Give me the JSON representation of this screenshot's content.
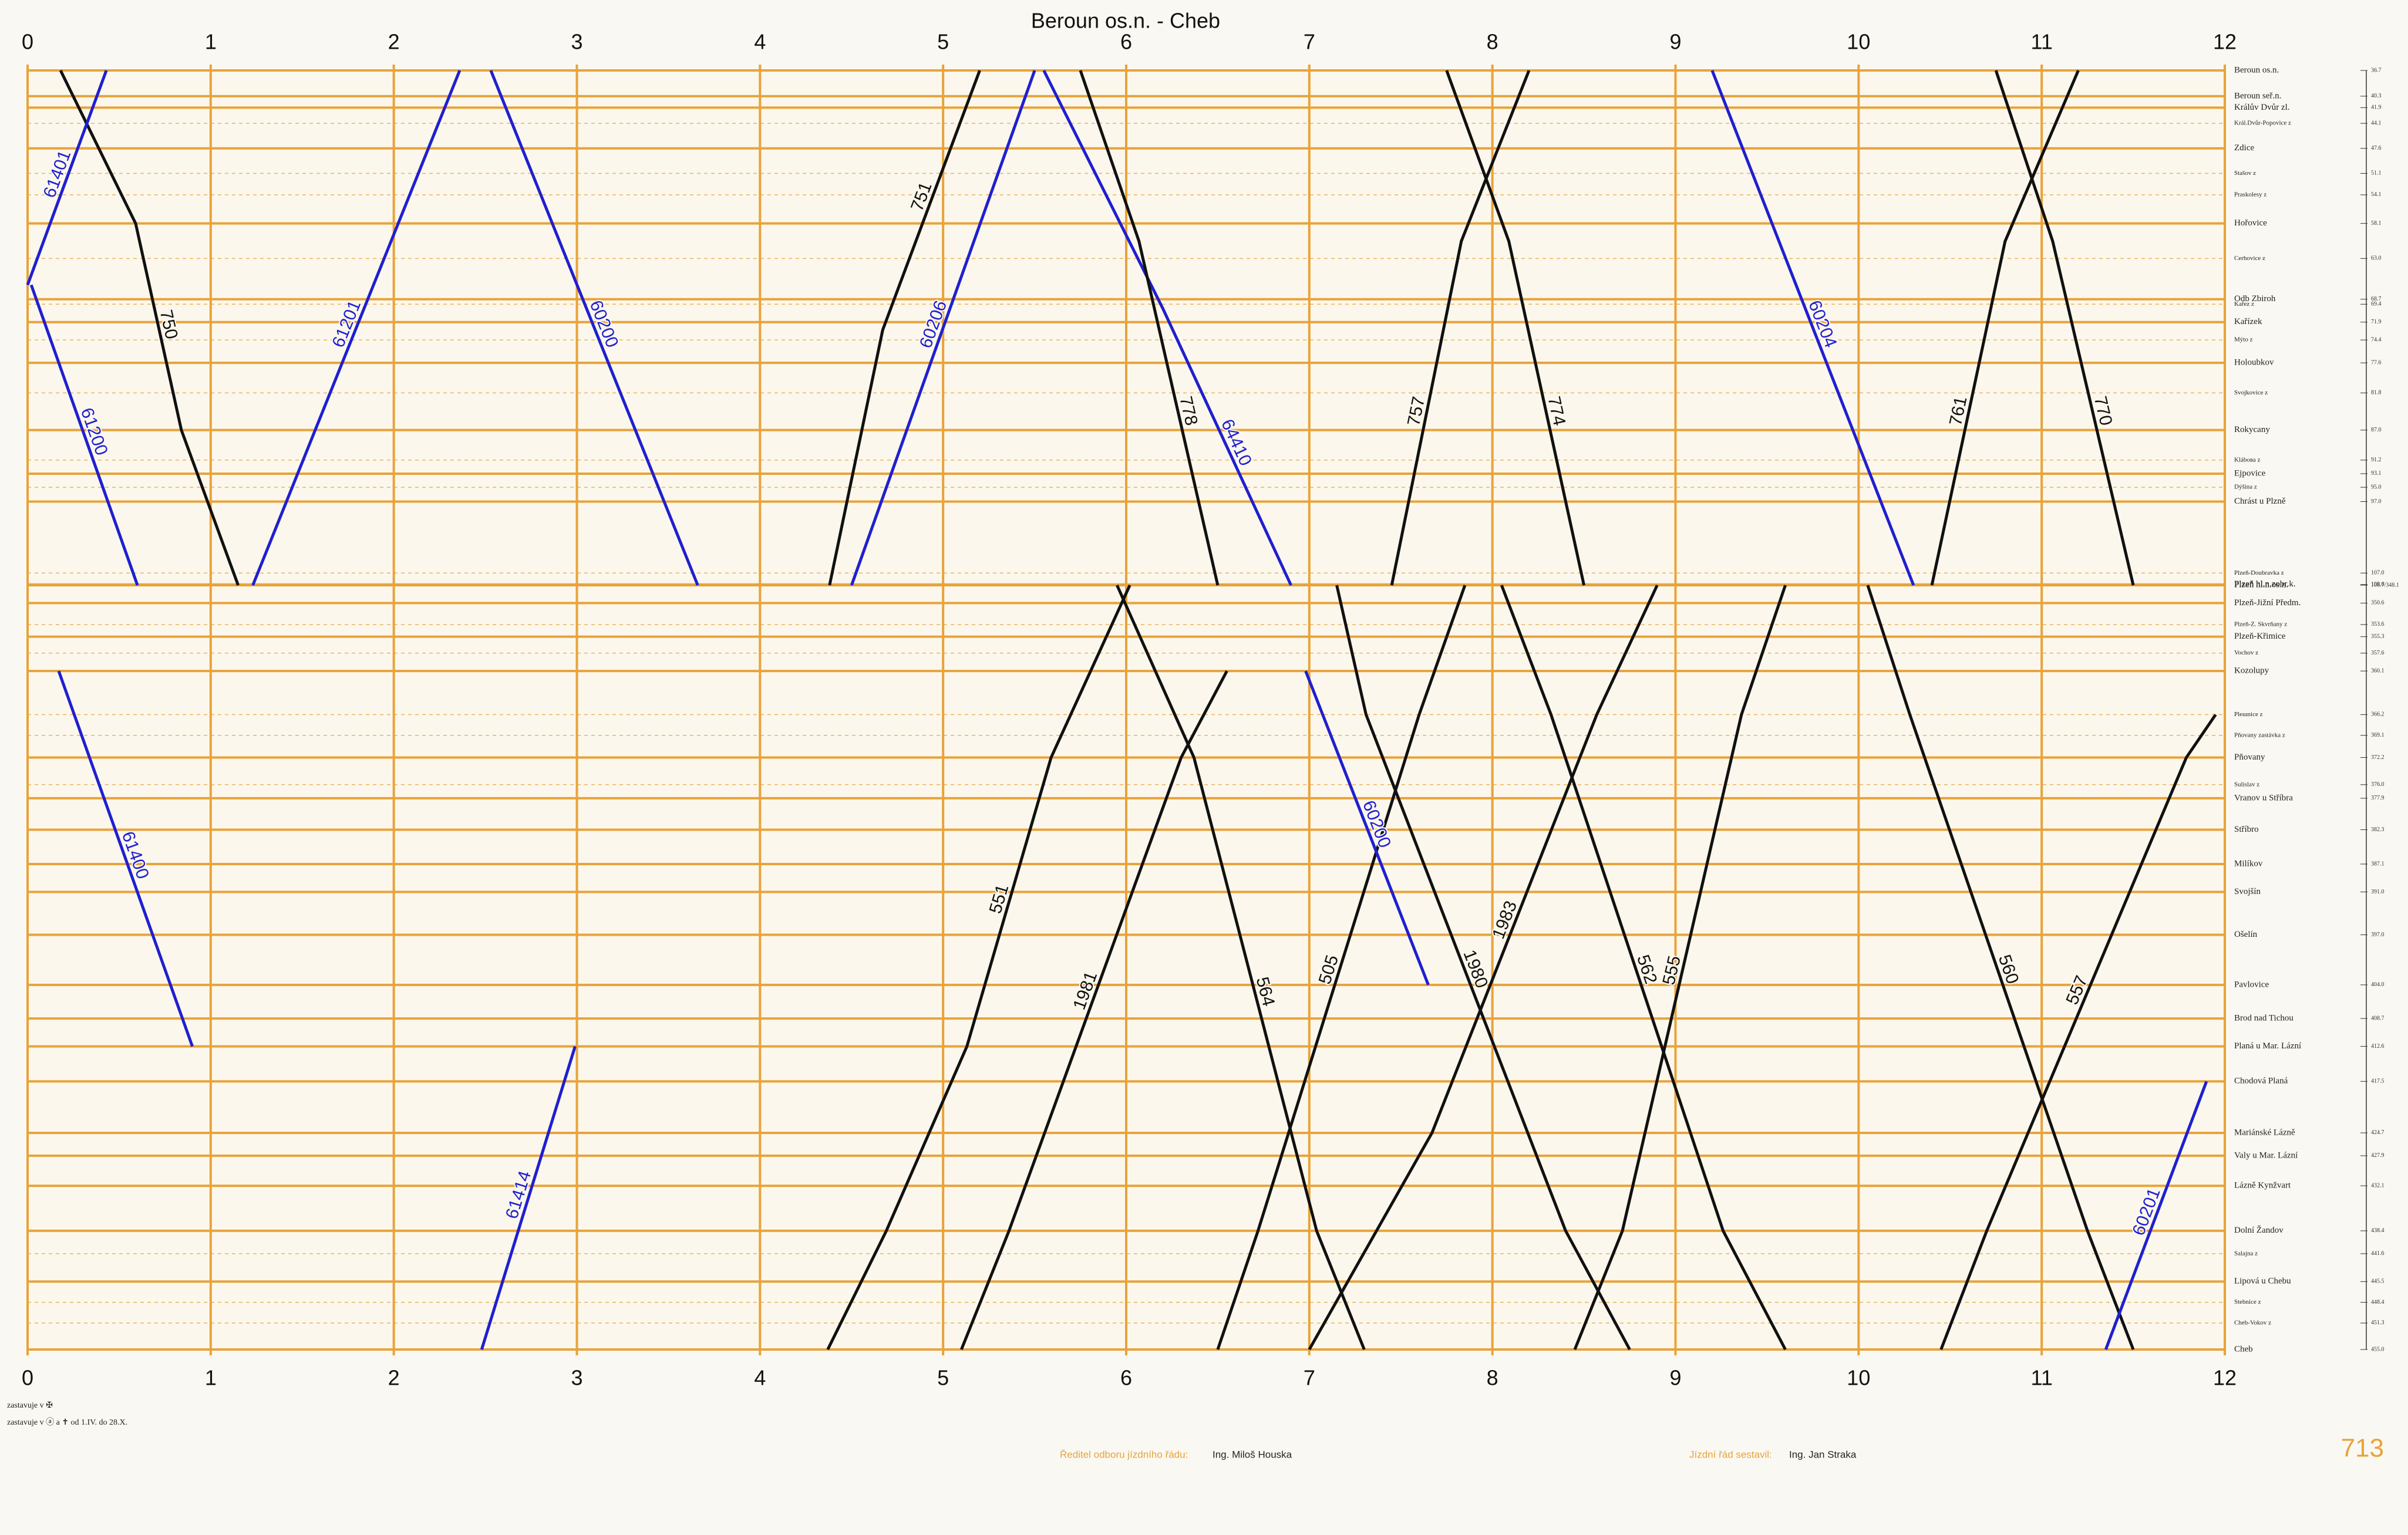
{
  "chart_data": {
    "type": "line",
    "title": "Beroun os.n. - Cheb",
    "xlim": [
      0,
      12
    ],
    "xticks": [
      0,
      1,
      2,
      3,
      4,
      5,
      6,
      7,
      8,
      9,
      10,
      11,
      12
    ],
    "ylim": [
      36.7,
      455
    ],
    "grid": true,
    "grid_color": "#e8a33a",
    "stations": [
      {
        "name": "Beroun os.n.",
        "km": 36.7
      },
      {
        "name": "Beroun seř.n.",
        "km": 40.3
      },
      {
        "name": "Králův Dvůr zl.",
        "km": 41.9
      },
      {
        "name": "Král.Dvůr-Popovice z",
        "km": 44.1
      },
      {
        "name": "Zdice",
        "km": 47.6
      },
      {
        "name": "Stašov z",
        "km": 51.1
      },
      {
        "name": "Praskolesy z",
        "km": 54.1
      },
      {
        "name": "Hořovice",
        "km": 58.1
      },
      {
        "name": "Cerhovice z",
        "km": {
          "value": 63,
          "label": "63.0"
        }
      },
      {
        "name": "Odb Zbiroh",
        "km": 68.7
      },
      {
        "name": "Kařez z",
        "km": 69.4
      },
      {
        "name": "Kařízek",
        "km": 71.9
      },
      {
        "name": "Mýto z",
        "km": 74.4
      },
      {
        "name": "Holoubkov",
        "km": 77.6
      },
      {
        "name": "Svojkovice z",
        "km": 81.8
      },
      {
        "name": "Rokycany",
        "km": {
          "value": 87,
          "label": "87.0"
        }
      },
      {
        "name": "Kláboва z",
        "km": 91.2
      },
      {
        "name": "Ejpovice",
        "km": 93.1
      },
      {
        "name": "Dýšina z",
        "km": {
          "value": 95,
          "label": "95.0"
        }
      },
      {
        "name": "Chrást u Plzně",
        "km": {
          "value": 97,
          "label": "97.0"
        }
      },
      {
        "name": "Plzeň-Doubravka z",
        "km": {
          "value": 107,
          "label": "107.0"
        }
      },
      {
        "name": "Plzeň hl.n.zobr.k.",
        "km": 108.6
      },
      {
        "name": "Plzeň hl.n.os.n.",
        "km": {
          "value": 108.7,
          "label": "108.7/348.1"
        },
        "km_next": 348.1
      },
      {
        "name": "Plzeň-Jižní Předm.",
        "km": 350.6
      },
      {
        "name": "Plzeň-Z. Skvrňany z",
        "km": 353.6
      },
      {
        "name": "Plzeň-Křimice",
        "km": 355.3
      },
      {
        "name": "Vochov z",
        "km": 357.6
      },
      {
        "name": "Kozolupy",
        "km": 360.1
      },
      {
        "name": "Pleшnice z",
        "km": 366.2
      },
      {
        "name": "Pňovany zastávka z",
        "km": 369.1
      },
      {
        "name": "Pňovany",
        "km": 372.2
      },
      {
        "name": "Sulislav z",
        "km": {
          "value": 376,
          "label": "376.0"
        }
      },
      {
        "name": "Vranov u Stříbra",
        "km": 377.9
      },
      {
        "name": "Stříbro",
        "km": 382.3
      },
      {
        "name": "Milíkov",
        "km": 387.1
      },
      {
        "name": "Svojšín",
        "km": {
          "value": 391,
          "label": "391.0"
        }
      },
      {
        "name": "Ošelín",
        "km": {
          "value": 397,
          "label": "397.0"
        }
      },
      {
        "name": "Pavlovice",
        "km": {
          "value": 404,
          "label": "404.0"
        }
      },
      {
        "name": "Brod nad Tichou",
        "km": 408.7
      },
      {
        "name": "Planá u Mar. Lázní",
        "km": 412.6
      },
      {
        "name": "Chodová Planá",
        "km": 417.5
      },
      {
        "name": "Mariánské Lázně",
        "km": 424.7
      },
      {
        "name": "Valy u Mar. Lázní",
        "km": 427.9
      },
      {
        "name": "Lázně Kynžvart",
        "km": 432.1
      },
      {
        "name": "Dolní Žandov",
        "km": 438.4
      },
      {
        "name": "Salajna z",
        "km": 441.6
      },
      {
        "name": "Lipová u Chebu",
        "km": 445.5
      },
      {
        "name": "Stebnice z",
        "km": 448.4
      },
      {
        "name": "Cheb-Vokov z",
        "km": 451.3
      },
      {
        "name": "Cheb",
        "km": {
          "value": 455,
          "label": "455.0"
        }
      }
    ],
    "series": [
      {
        "name": "750",
        "color": "#111111",
        "x": [
          0.18,
          0.59,
          0.84,
          1.15
        ],
        "values": [
          36.7,
          58.1,
          87,
          108.7
        ]
      },
      {
        "name": "61401",
        "color": "#1f1fd0",
        "x": [
          0.0,
          0.43
        ],
        "values": [
          66.7,
          36.7
        ]
      },
      {
        "name": "61200",
        "color": "#1f1fd0",
        "x": [
          0.02,
          0.6
        ],
        "values": [
          66.7,
          108.7
        ]
      },
      {
        "name": "61400",
        "color": "#1f1fd0",
        "x": [
          0.17,
          0.9
        ],
        "values": [
          360.1,
          412.6
        ]
      },
      {
        "name": "61201",
        "color": "#1f1fd0",
        "x": [
          1.23,
          2.36
        ],
        "values": [
          108.7,
          36.7
        ]
      },
      {
        "name": "60200",
        "color": "#1f1fd0",
        "x": [
          2.53,
          3.66
        ],
        "values": [
          36.7,
          108.7
        ]
      },
      {
        "name": "61414",
        "color": "#1f1fd0",
        "x": [
          2.48,
          2.99
        ],
        "values": [
          455,
          412.6
        ]
      },
      {
        "name": "751",
        "color": "#111111",
        "x": [
          4.38,
          4.67,
          5.2
        ],
        "values": [
          108.7,
          73,
          36.7
        ]
      },
      {
        "name": "60206",
        "color": "#1f1fd0",
        "x": [
          4.5,
          5.5
        ],
        "values": [
          108.7,
          36.7
        ]
      },
      {
        "name": "551",
        "color": "#111111",
        "x": [
          4.37,
          4.69,
          5.13,
          5.59,
          6.02
        ],
        "values": [
          455,
          438.4,
          412.6,
          372.2,
          348.1
        ]
      },
      {
        "name": "564",
        "color": "#111111",
        "x": [
          5.95,
          6.37,
          7.04,
          7.3
        ],
        "values": [
          348.1,
          372.2,
          438.4,
          455
        ]
      },
      {
        "name": "64410",
        "color": "#1f1fd0",
        "x": [
          5.55,
          6.2,
          6.9
        ],
        "values": [
          36.7,
          70,
          108.7
        ]
      },
      {
        "name": "1981",
        "color": "#111111",
        "x": [
          5.1,
          5.36,
          6.3,
          6.55
        ],
        "values": [
          455,
          438.4,
          372.2,
          360.1
        ]
      },
      {
        "name": "505",
        "color": "#111111",
        "x": [
          6.5,
          6.72,
          7.6,
          7.85
        ],
        "values": [
          455,
          438.4,
          366.2,
          348.1
        ]
      },
      {
        "name": "60200",
        "color": "#1f1fd0",
        "x": [
          6.98,
          7.65
        ],
        "values": [
          360.1,
          404
        ]
      },
      {
        "name": "1980",
        "color": "#111111",
        "x": [
          7.15,
          7.31,
          8.4,
          8.75
        ],
        "values": [
          348.1,
          366.2,
          438.4,
          455
        ]
      },
      {
        "name": "774",
        "color": "#111111",
        "x": [
          7.75,
          8.09,
          8.5
        ],
        "values": [
          36.7,
          60.6,
          108.7
        ]
      },
      {
        "name": "1983",
        "color": "#111111",
        "x": [
          7.0,
          7.67,
          8.57,
          8.9
        ],
        "values": [
          455,
          424.7,
          366.2,
          348.1
        ]
      },
      {
        "name": "562",
        "color": "#111111",
        "x": [
          8.05,
          8.32,
          9.26,
          9.6
        ],
        "values": [
          348.1,
          366.2,
          438.4,
          455
        ]
      },
      {
        "name": "555",
        "color": "#111111",
        "x": [
          8.45,
          8.71,
          9.36,
          9.6
        ],
        "values": [
          455,
          438.4,
          366.2,
          348.1
        ]
      },
      {
        "name": "60204",
        "color": "#1f1fd0",
        "x": [
          9.2,
          10.3
        ],
        "values": [
          36.7,
          108.7
        ]
      },
      {
        "name": "560",
        "color": "#111111",
        "x": [
          10.05,
          10.28,
          11.25,
          11.5
        ],
        "values": [
          348.1,
          366.2,
          438.4,
          455
        ]
      },
      {
        "name": "557",
        "color": "#111111",
        "x": [
          10.45,
          10.7,
          11.79,
          11.95
        ],
        "values": [
          455,
          438.4,
          372.2,
          366.2
        ]
      },
      {
        "name": "60201",
        "color": "#1f1fd0",
        "x": [
          11.35,
          11.9
        ],
        "values": [
          455,
          417.5
        ]
      },
      {
        "name": "770",
        "color": "#111111",
        "x": [
          10.75,
          11.06,
          11.5
        ],
        "values": [
          36.7,
          60.6,
          108.7
        ]
      },
      {
        "name": "761",
        "color": "#111111",
        "x": [
          10.4,
          10.8,
          11.2
        ],
        "values": [
          108.7,
          60.6,
          36.7
        ]
      },
      {
        "name": "757",
        "color": "#111111",
        "x": [
          7.45,
          7.83,
          8.2
        ],
        "values": [
          108.7,
          60.6,
          36.7
        ]
      },
      {
        "name": "778",
        "color": "#111111",
        "x": [
          5.75,
          6.07,
          6.5
        ],
        "values": [
          36.7,
          60.6,
          108.7
        ]
      }
    ],
    "footnotes": [
      "zastavuje v ✠",
      "zastavuje v ⓐ a ✝ od 1.IV. do 28.X."
    ],
    "signatures": [
      {
        "role": "Ředitel odboru jízdního řádu:",
        "name": "Ing. Miloš Houska"
      },
      {
        "role": "Jízdní řád sestavil:",
        "name": "Ing. Jan Straka"
      }
    ],
    "page_number": 713
  }
}
